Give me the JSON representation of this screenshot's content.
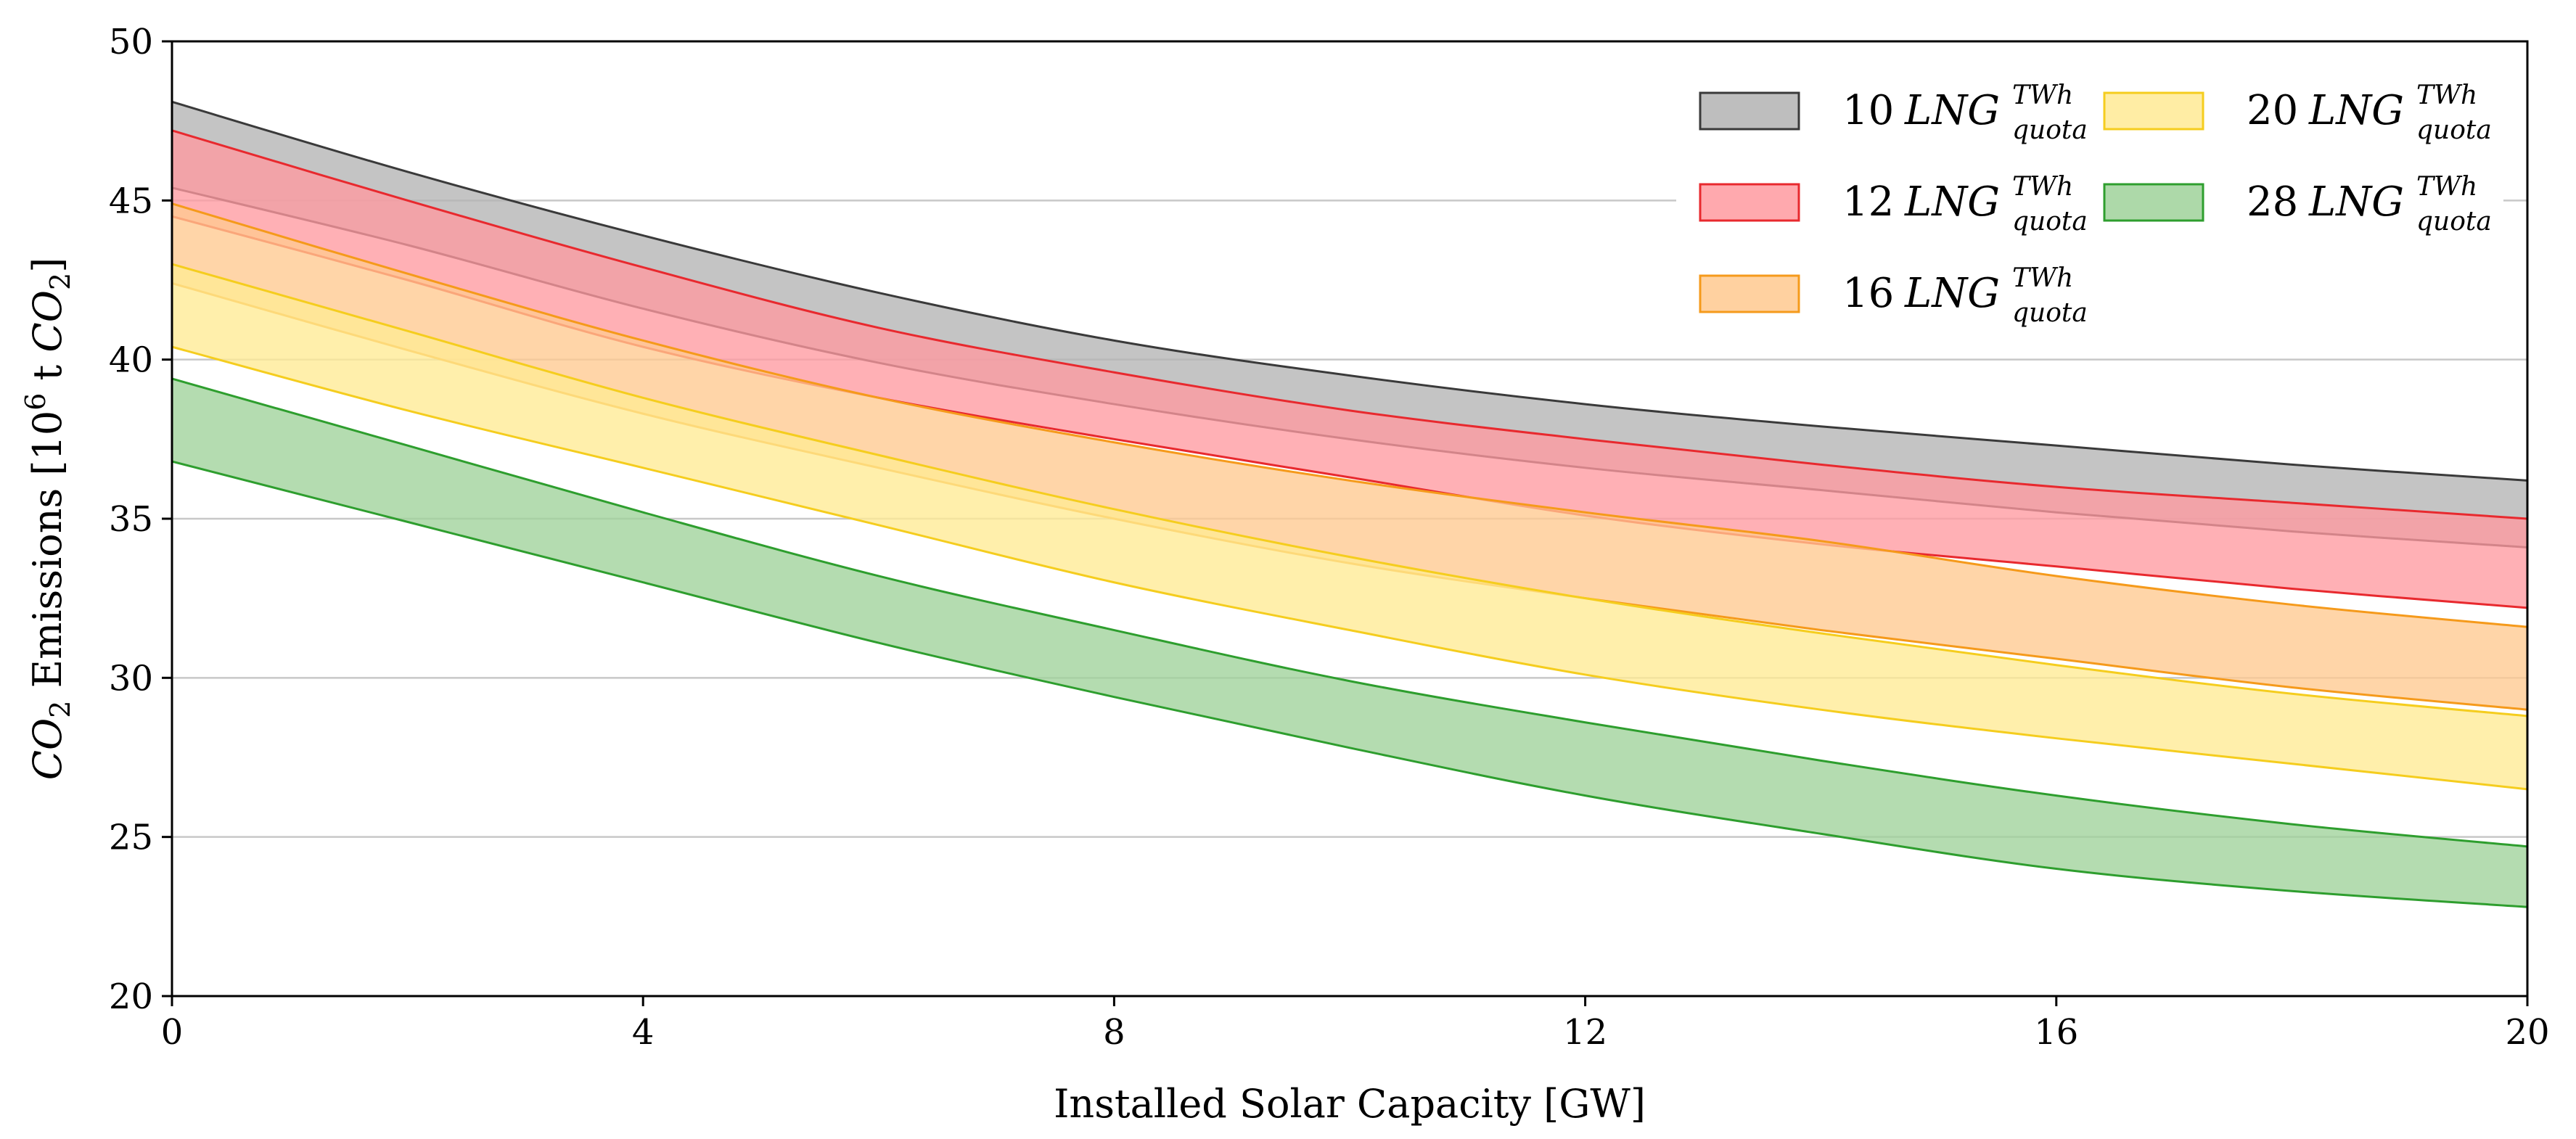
{
  "chart_data": {
    "type": "area",
    "title": "",
    "xlabel": "Installed Solar Capacity [GW]",
    "ylabel": {
      "prefix_symbol": "CO",
      "prefix_sub": "2",
      "middle": " Emissions [10",
      "exp": "6",
      "unit": " t ",
      "unit_symbol": "CO",
      "unit_sub": "2",
      "suffix": "]"
    },
    "xlim": [
      0,
      20
    ],
    "ylim": [
      20,
      50
    ],
    "xticks": [
      0,
      4,
      8,
      12,
      16,
      20
    ],
    "yticks": [
      20,
      25,
      30,
      35,
      40,
      45,
      50
    ],
    "grid": "horizontal",
    "legend_position": "top-right",
    "x": [
      0,
      2,
      4,
      6,
      8,
      10,
      12,
      14,
      16,
      18,
      20
    ],
    "series": [
      {
        "name_number": "10",
        "name_symbol": "LNG",
        "name_sup": "TWh",
        "name_sub": "quota",
        "fill": "#b3b3b3",
        "edge": "#3a3a3a",
        "upper": [
          48.1,
          45.9,
          43.9,
          42.1,
          40.6,
          39.5,
          38.6,
          37.9,
          37.3,
          36.7,
          36.2
        ],
        "lower": [
          45.4,
          43.6,
          41.6,
          39.9,
          38.6,
          37.5,
          36.6,
          35.9,
          35.2,
          34.6,
          34.1
        ]
      },
      {
        "name_number": "12",
        "name_symbol": "LNG",
        "name_sup": "TWh",
        "name_sub": "quota",
        "fill": "#ff9aa0",
        "edge": "#e8292e",
        "upper": [
          47.2,
          45.0,
          42.9,
          41.0,
          39.6,
          38.4,
          37.5,
          36.7,
          36.0,
          35.5,
          35.0
        ],
        "lower": [
          44.5,
          42.5,
          40.4,
          38.8,
          37.5,
          36.3,
          35.1,
          34.2,
          33.5,
          32.8,
          32.2
        ]
      },
      {
        "name_number": "16",
        "name_symbol": "LNG",
        "name_sup": "TWh",
        "name_sub": "quota",
        "fill": "#ffc98f",
        "edge": "#f59a1b",
        "upper": [
          44.9,
          42.7,
          40.6,
          38.8,
          37.4,
          36.2,
          35.2,
          34.3,
          33.2,
          32.3,
          31.6
        ],
        "lower": [
          42.4,
          40.3,
          38.3,
          36.6,
          35.0,
          33.6,
          32.5,
          31.5,
          30.6,
          29.7,
          29.0
        ]
      },
      {
        "name_number": "20",
        "name_symbol": "LNG",
        "name_sup": "TWh",
        "name_sub": "quota",
        "fill": "#ffea94",
        "edge": "#f5cd1e",
        "upper": [
          43.0,
          40.9,
          38.8,
          37.0,
          35.3,
          33.8,
          32.5,
          31.4,
          30.4,
          29.5,
          28.8
        ],
        "lower": [
          40.4,
          38.4,
          36.6,
          34.8,
          33.0,
          31.5,
          30.1,
          29.0,
          28.1,
          27.3,
          26.5
        ]
      },
      {
        "name_number": "28",
        "name_symbol": "LNG",
        "name_sup": "TWh",
        "name_sub": "quota",
        "fill": "#9fd29a",
        "edge": "#2e9e2e",
        "upper": [
          39.4,
          37.3,
          35.2,
          33.2,
          31.5,
          29.9,
          28.6,
          27.4,
          26.3,
          25.4,
          24.7
        ],
        "lower": [
          36.8,
          34.9,
          33.0,
          31.1,
          29.4,
          27.8,
          26.3,
          25.1,
          24.0,
          23.3,
          22.8
        ]
      }
    ]
  }
}
